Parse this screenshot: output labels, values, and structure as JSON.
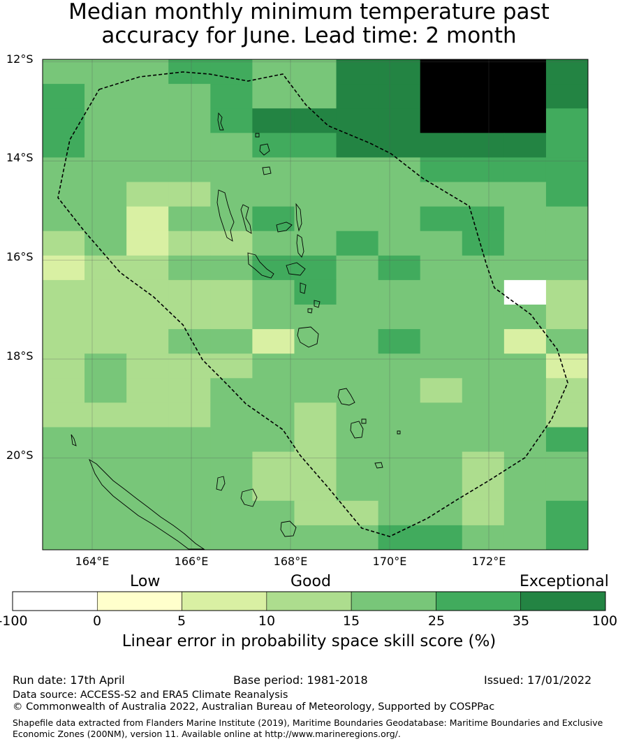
{
  "title_line1": "Median monthly minimum temperature past",
  "title_line2": "accuracy for June. Lead time: 2 month",
  "lat_labels": [
    "12°S",
    "14°S",
    "16°S",
    "18°S",
    "20°S"
  ],
  "lon_labels": [
    "164°E",
    "166°E",
    "168°E",
    "170°E",
    "172°E"
  ],
  "legend": {
    "category_low": "Low",
    "category_good": "Good",
    "category_exceptional": "Exceptional",
    "bounds": [
      "-100",
      "0",
      "5",
      "10",
      "15",
      "25",
      "35",
      "100"
    ],
    "colors": [
      "#ffffff",
      "#ffffcc",
      "#d9f0a3",
      "#addd8e",
      "#78c679",
      "#41ab5d",
      "#238443"
    ],
    "title": "Linear error in probability space skill score (%)"
  },
  "footer": {
    "run_date": "Run date: 17th April",
    "base_period": "Base period: 1981-2018",
    "issued": "Issued: 17/01/2022",
    "data_source": "Data source: ACCESS-S2 and ERA5 Climate Reanalysis",
    "copyright": "© Commonwealth of Australia 2022, Australian Bureau of Meteorology, Supported by COSPPac",
    "shapefile_line1": "Shapefile data extracted from Flanders Marine Institute (2019), Maritime Boundaries Geodatabase: Maritime Boundaries and Exclusive",
    "shapefile_line2": "Economic Zones (200NM), version 11. Available online at http://www.marineregions.org/."
  },
  "map_data": {
    "type": "heatmap",
    "lon_range": [
      163,
      174
    ],
    "lat_range": [
      -11.95,
      -21.85
    ],
    "col_width_deg": 0.833,
    "row_height_deg": 0.55,
    "grid": [
      "4445544667776",
      "5444544667776",
      "5444566667775",
      "5444455666665",
      "4444444445555",
      "4433444444445",
      "4424454445544",
      "3423344544544",
      "2334455454444",
      "3333345444403",
      "3333344444443",
      "3334424454424",
      "3433344444442",
      "3433444443443",
      "3333443444443",
      "4444443444445",
      "4444433444344",
      "4444433444344",
      "4444443344345",
      "4444444455445"
    ]
  }
}
